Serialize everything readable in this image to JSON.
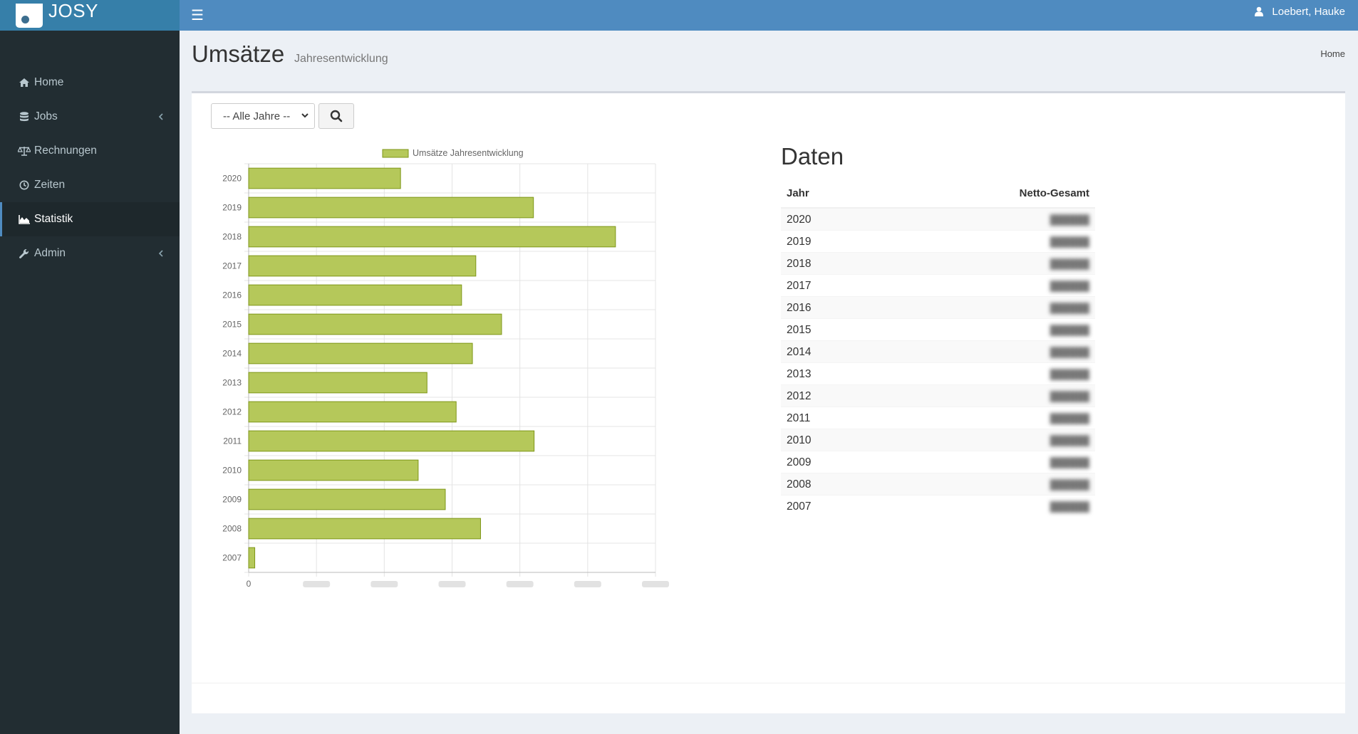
{
  "app": {
    "name": "JOSY"
  },
  "header": {
    "user_name": "Loebert, Hauke"
  },
  "sidebar": {
    "items": [
      {
        "label": "Home",
        "icon": "home-icon",
        "active": false,
        "has_submenu": false
      },
      {
        "label": "Jobs",
        "icon": "database-icon",
        "active": false,
        "has_submenu": true
      },
      {
        "label": "Rechnungen",
        "icon": "balance-scale-icon",
        "active": false,
        "has_submenu": false
      },
      {
        "label": "Zeiten",
        "icon": "clock-icon",
        "active": false,
        "has_submenu": false
      },
      {
        "label": "Statistik",
        "icon": "area-chart-icon",
        "active": true,
        "has_submenu": false
      },
      {
        "label": "Admin",
        "icon": "wrench-icon",
        "active": false,
        "has_submenu": true
      }
    ]
  },
  "page": {
    "title": "Umsätze",
    "subtitle": "Jahresentwicklung",
    "breadcrumb": "Home"
  },
  "filter": {
    "selected": "-- Alle Jahre --"
  },
  "colors": {
    "bar_fill": "#b5c85a",
    "bar_stroke": "#7e9618",
    "header": "#4f8bc0",
    "logo": "#367fa9",
    "sidebar": "#222d32"
  },
  "chart_data": {
    "type": "bar",
    "orientation": "horizontal",
    "categories": [
      "2020",
      "2019",
      "2018",
      "2017",
      "2016",
      "2015",
      "2014",
      "2013",
      "2012",
      "2011",
      "2010",
      "2009",
      "2008",
      "2007"
    ],
    "series": [
      {
        "name": "Umsätze Jahresentwicklung",
        "values": [
          22.4,
          42.0,
          54.1,
          33.5,
          31.4,
          37.3,
          33.0,
          26.3,
          30.6,
          42.1,
          25.0,
          29.0,
          34.2,
          0.9
        ]
      }
    ],
    "xlim": [
      0,
      60
    ],
    "x_tick_labels": [
      "0"
    ],
    "legend": "top",
    "grid": true
  },
  "data_table": {
    "title": "Daten",
    "columns": [
      "Jahr",
      "Netto-Gesamt"
    ],
    "rows": [
      {
        "year": "2020"
      },
      {
        "year": "2019"
      },
      {
        "year": "2018"
      },
      {
        "year": "2017"
      },
      {
        "year": "2016"
      },
      {
        "year": "2015"
      },
      {
        "year": "2014"
      },
      {
        "year": "2013"
      },
      {
        "year": "2012"
      },
      {
        "year": "2011"
      },
      {
        "year": "2010"
      },
      {
        "year": "2009"
      },
      {
        "year": "2008"
      },
      {
        "year": "2007"
      }
    ]
  }
}
